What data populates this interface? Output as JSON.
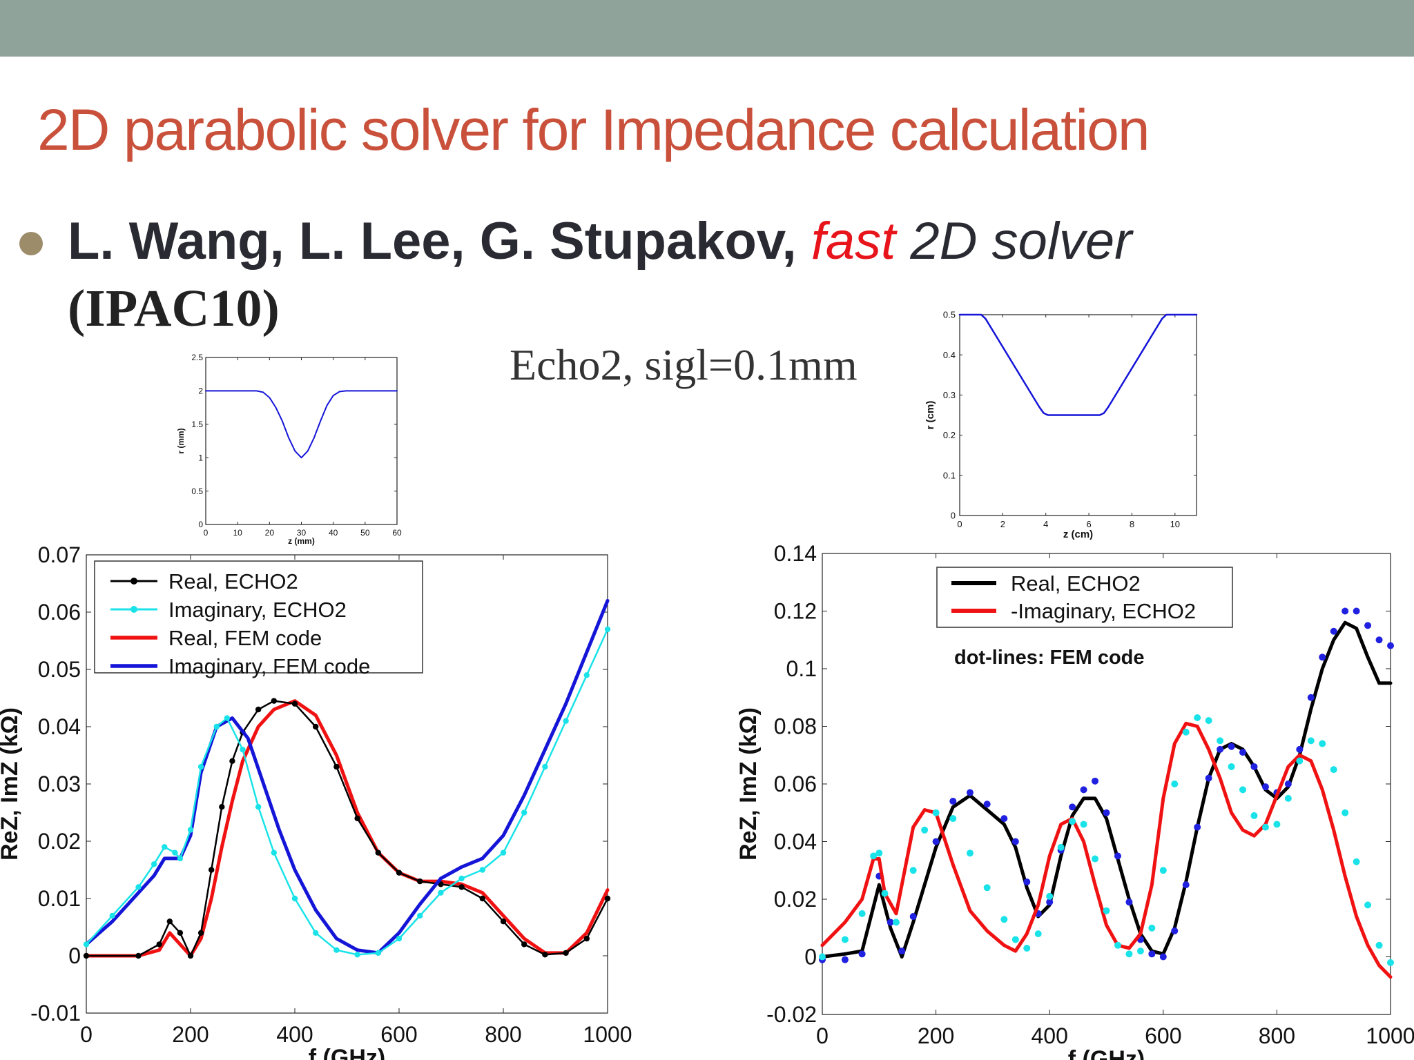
{
  "slide": {
    "title": "2D parabolic solver for Impedance calculation",
    "bullet": {
      "authors": "L. Wang, L. Lee, G. Stupakov,",
      "fast": "fast",
      "rest": "2D solver",
      "venue": "(IPAC10)"
    },
    "subtitle": "Echo2, sigl=0.1mm"
  },
  "colors": {
    "title": "#c9513b",
    "topbar": "#8fa39a",
    "blue": "#1515d8",
    "cyan": "#19e3e8",
    "red": "#f01212",
    "black": "#000000"
  },
  "chart_data": [
    {
      "id": "geom_left",
      "type": "line",
      "xlabel": "z (mm)",
      "ylabel": "r (mm)",
      "xlim": [
        0,
        60
      ],
      "ylim": [
        0,
        2.5
      ],
      "xticks": [
        0,
        10,
        20,
        30,
        40,
        50,
        60
      ],
      "yticks": [
        0,
        0.5,
        1,
        1.5,
        2,
        2.5
      ],
      "ytick_labels": [
        "0",
        "0.5",
        "1",
        "1.5",
        "2",
        "2.5"
      ],
      "series": [
        {
          "name": "profile",
          "color": "#1515d8",
          "x": [
            0,
            12,
            14,
            16,
            18,
            20,
            22,
            24,
            26,
            28,
            30,
            32,
            34,
            36,
            38,
            40,
            42,
            44,
            46,
            48,
            60
          ],
          "y": [
            2,
            2,
            2,
            2,
            1.98,
            1.9,
            1.75,
            1.55,
            1.3,
            1.1,
            1.0,
            1.1,
            1.3,
            1.55,
            1.78,
            1.93,
            1.99,
            2,
            2,
            2,
            2
          ]
        }
      ]
    },
    {
      "id": "geom_right",
      "type": "line",
      "xlabel": "z (cm)",
      "ylabel": "r (cm)",
      "xlim": [
        0,
        11
      ],
      "ylim": [
        0,
        0.5
      ],
      "xticks": [
        0,
        2,
        4,
        6,
        8,
        10
      ],
      "yticks": [
        0,
        0.1,
        0.2,
        0.3,
        0.4,
        0.5
      ],
      "ytick_labels": [
        "0",
        "0.1",
        "0.2",
        "0.3",
        "0.4",
        "0.5"
      ],
      "series": [
        {
          "name": "profile",
          "color": "#1515d8",
          "x": [
            0,
            0.8,
            1.0,
            1.2,
            3.7,
            3.9,
            4.1,
            5.0,
            6.5,
            6.7,
            6.9,
            9.4,
            9.6,
            9.8,
            11
          ],
          "y": [
            0.5,
            0.5,
            0.5,
            0.49,
            0.27,
            0.255,
            0.25,
            0.25,
            0.25,
            0.255,
            0.27,
            0.49,
            0.5,
            0.5,
            0.5
          ]
        }
      ]
    },
    {
      "id": "impedance_left",
      "type": "line",
      "xlabel": "f (GHz)",
      "ylabel": "ReZ, ImZ (kΩ)",
      "xlim": [
        0,
        1000
      ],
      "ylim": [
        -0.01,
        0.07
      ],
      "xticks": [
        0,
        200,
        400,
        600,
        800,
        1000
      ],
      "yticks": [
        -0.01,
        0,
        0.01,
        0.02,
        0.03,
        0.04,
        0.05,
        0.06,
        0.07
      ],
      "ytick_labels": [
        "-0.01",
        "0",
        "0.01",
        "0.02",
        "0.03",
        "0.04",
        "0.05",
        "0.06",
        "0.07"
      ],
      "legend": [
        "Real, ECHO2",
        "Imaginary, ECHO2",
        "Real, FEM code",
        "Imaginary, FEM code"
      ],
      "series": [
        {
          "name": "Real, FEM code",
          "color": "#f01212",
          "style": "line",
          "x": [
            0,
            100,
            140,
            160,
            180,
            200,
            220,
            240,
            260,
            280,
            300,
            330,
            360,
            400,
            440,
            480,
            520,
            560,
            600,
            640,
            680,
            720,
            760,
            800,
            840,
            880,
            920,
            960,
            1000
          ],
          "y": [
            0,
            0,
            0.001,
            0.004,
            0.002,
            0,
            0.003,
            0.01,
            0.019,
            0.027,
            0.034,
            0.04,
            0.043,
            0.0445,
            0.042,
            0.035,
            0.025,
            0.018,
            0.0145,
            0.013,
            0.013,
            0.0125,
            0.011,
            0.007,
            0.003,
            0.0005,
            0.0005,
            0.004,
            0.0115
          ]
        },
        {
          "name": "Real, ECHO2",
          "color": "#000000",
          "style": "dots",
          "x": [
            0,
            100,
            140,
            160,
            180,
            200,
            220,
            240,
            260,
            280,
            300,
            330,
            360,
            400,
            440,
            480,
            520,
            560,
            600,
            640,
            680,
            720,
            760,
            800,
            840,
            880,
            920,
            960,
            1000
          ],
          "y": [
            0,
            0,
            0.002,
            0.006,
            0.004,
            0,
            0.004,
            0.015,
            0.026,
            0.034,
            0.039,
            0.043,
            0.0445,
            0.044,
            0.04,
            0.033,
            0.024,
            0.018,
            0.0145,
            0.013,
            0.0125,
            0.012,
            0.01,
            0.006,
            0.002,
            0.0002,
            0.0005,
            0.003,
            0.01
          ]
        },
        {
          "name": "Imaginary, FEM code",
          "color": "#1515d8",
          "style": "line",
          "x": [
            0,
            50,
            100,
            130,
            150,
            180,
            200,
            220,
            250,
            280,
            310,
            340,
            370,
            400,
            440,
            480,
            520,
            560,
            600,
            640,
            680,
            720,
            760,
            800,
            840,
            880,
            920,
            960,
            1000
          ],
          "y": [
            0.002,
            0.006,
            0.011,
            0.014,
            0.017,
            0.017,
            0.021,
            0.032,
            0.04,
            0.0415,
            0.038,
            0.03,
            0.022,
            0.015,
            0.008,
            0.003,
            0.001,
            0.0005,
            0.004,
            0.009,
            0.0135,
            0.0155,
            0.017,
            0.021,
            0.028,
            0.036,
            0.044,
            0.053,
            0.062
          ]
        },
        {
          "name": "Imaginary, ECHO2",
          "color": "#19e3e8",
          "style": "dots",
          "x": [
            0,
            50,
            100,
            130,
            150,
            170,
            180,
            200,
            220,
            250,
            270,
            300,
            330,
            360,
            400,
            440,
            480,
            520,
            560,
            600,
            640,
            680,
            720,
            760,
            800,
            840,
            880,
            920,
            960,
            1000
          ],
          "y": [
            0.002,
            0.007,
            0.012,
            0.016,
            0.019,
            0.018,
            0.017,
            0.022,
            0.033,
            0.04,
            0.0415,
            0.036,
            0.026,
            0.018,
            0.01,
            0.004,
            0.001,
            0.0002,
            0.0005,
            0.003,
            0.007,
            0.011,
            0.0135,
            0.015,
            0.018,
            0.025,
            0.033,
            0.041,
            0.049,
            0.057
          ]
        }
      ]
    },
    {
      "id": "impedance_right",
      "type": "line",
      "xlabel": "f (GHz)",
      "ylabel": "ReZ, ImZ (kΩ)",
      "xlim": [
        0,
        1000
      ],
      "ylim": [
        -0.02,
        0.14
      ],
      "xticks": [
        0,
        200,
        400,
        600,
        800,
        1000
      ],
      "yticks": [
        -0.02,
        0,
        0.02,
        0.04,
        0.06,
        0.08,
        0.1,
        0.12,
        0.14
      ],
      "ytick_labels": [
        "-0.02",
        "0",
        "0.02",
        "0.04",
        "0.06",
        "0.08",
        "0.1",
        "0.12",
        "0.14"
      ],
      "legend": [
        "Real, ECHO2",
        "-Imaginary, ECHO2"
      ],
      "annotation": "dot-lines: FEM code",
      "series": [
        {
          "name": "Real, ECHO2",
          "color": "#000000",
          "style": "line",
          "x": [
            0,
            40,
            70,
            100,
            120,
            140,
            160,
            200,
            230,
            260,
            290,
            320,
            340,
            360,
            380,
            400,
            420,
            440,
            460,
            480,
            500,
            520,
            540,
            560,
            580,
            600,
            620,
            640,
            660,
            680,
            700,
            720,
            740,
            760,
            780,
            800,
            820,
            840,
            860,
            880,
            900,
            920,
            940,
            960,
            980,
            1000
          ],
          "y": [
            0,
            0.001,
            0.002,
            0.025,
            0.01,
            0,
            0.012,
            0.038,
            0.052,
            0.056,
            0.051,
            0.046,
            0.038,
            0.024,
            0.014,
            0.018,
            0.035,
            0.049,
            0.055,
            0.055,
            0.048,
            0.034,
            0.02,
            0.008,
            0.002,
            0.001,
            0.01,
            0.026,
            0.045,
            0.062,
            0.072,
            0.074,
            0.072,
            0.066,
            0.058,
            0.055,
            0.059,
            0.07,
            0.086,
            0.1,
            0.11,
            0.116,
            0.114,
            0.104,
            0.095,
            0.095
          ]
        },
        {
          "name": "FEM real (dots)",
          "color": "#2020e0",
          "style": "dots",
          "x": [
            0,
            40,
            70,
            100,
            120,
            140,
            160,
            200,
            230,
            260,
            290,
            320,
            340,
            360,
            380,
            400,
            420,
            440,
            460,
            480,
            500,
            520,
            540,
            560,
            580,
            600,
            620,
            640,
            660,
            680,
            700,
            720,
            740,
            760,
            780,
            800,
            820,
            840,
            860,
            880,
            900,
            920,
            940,
            960,
            980,
            1000
          ],
          "y": [
            -0.001,
            -0.001,
            0.001,
            0.028,
            0.012,
            0.002,
            0.014,
            0.04,
            0.054,
            0.057,
            0.053,
            0.048,
            0.04,
            0.026,
            0.015,
            0.019,
            0.037,
            0.052,
            0.058,
            0.061,
            0.05,
            0.035,
            0.019,
            0.006,
            0.001,
            0,
            0.009,
            0.025,
            0.045,
            0.062,
            0.072,
            0.073,
            0.071,
            0.066,
            0.059,
            0.057,
            0.06,
            0.072,
            0.09,
            0.104,
            0.113,
            0.12,
            0.12,
            0.115,
            0.11,
            0.108
          ]
        },
        {
          "name": "-Imaginary, ECHO2",
          "color": "#f01212",
          "style": "line",
          "x": [
            0,
            40,
            70,
            90,
            100,
            110,
            130,
            160,
            180,
            200,
            230,
            260,
            290,
            320,
            340,
            360,
            380,
            400,
            420,
            440,
            460,
            480,
            500,
            520,
            540,
            560,
            580,
            600,
            620,
            640,
            660,
            680,
            700,
            720,
            740,
            760,
            780,
            800,
            820,
            840,
            860,
            880,
            900,
            920,
            940,
            960,
            980,
            1000
          ],
          "y": [
            0.004,
            0.012,
            0.02,
            0.034,
            0.034,
            0.022,
            0.015,
            0.045,
            0.051,
            0.05,
            0.032,
            0.016,
            0.009,
            0.004,
            0.002,
            0.008,
            0.018,
            0.035,
            0.046,
            0.048,
            0.04,
            0.025,
            0.011,
            0.004,
            0.003,
            0.008,
            0.025,
            0.055,
            0.074,
            0.081,
            0.08,
            0.072,
            0.062,
            0.05,
            0.044,
            0.042,
            0.046,
            0.056,
            0.066,
            0.07,
            0.068,
            0.058,
            0.044,
            0.028,
            0.014,
            0.004,
            -0.003,
            -0.007
          ]
        },
        {
          "name": "FEM imag (dots)",
          "color": "#19e3e8",
          "style": "dots",
          "x": [
            0,
            40,
            70,
            90,
            100,
            110,
            130,
            160,
            180,
            200,
            230,
            260,
            290,
            320,
            340,
            360,
            380,
            400,
            420,
            440,
            460,
            480,
            500,
            520,
            540,
            560,
            580,
            600,
            620,
            640,
            660,
            680,
            700,
            720,
            740,
            760,
            780,
            800,
            820,
            840,
            860,
            880,
            900,
            920,
            940,
            960,
            980,
            1000
          ],
          "y": [
            0,
            0.006,
            0.015,
            0.035,
            0.036,
            0.022,
            0.012,
            0.03,
            0.044,
            0.05,
            0.048,
            0.036,
            0.024,
            0.013,
            0.006,
            0.003,
            0.008,
            0.021,
            0.038,
            0.047,
            0.046,
            0.034,
            0.016,
            0.004,
            0.001,
            0.002,
            0.01,
            0.03,
            0.06,
            0.078,
            0.083,
            0.082,
            0.075,
            0.066,
            0.058,
            0.049,
            0.045,
            0.046,
            0.055,
            0.068,
            0.075,
            0.074,
            0.065,
            0.05,
            0.033,
            0.018,
            0.004,
            -0.002
          ]
        }
      ]
    }
  ]
}
